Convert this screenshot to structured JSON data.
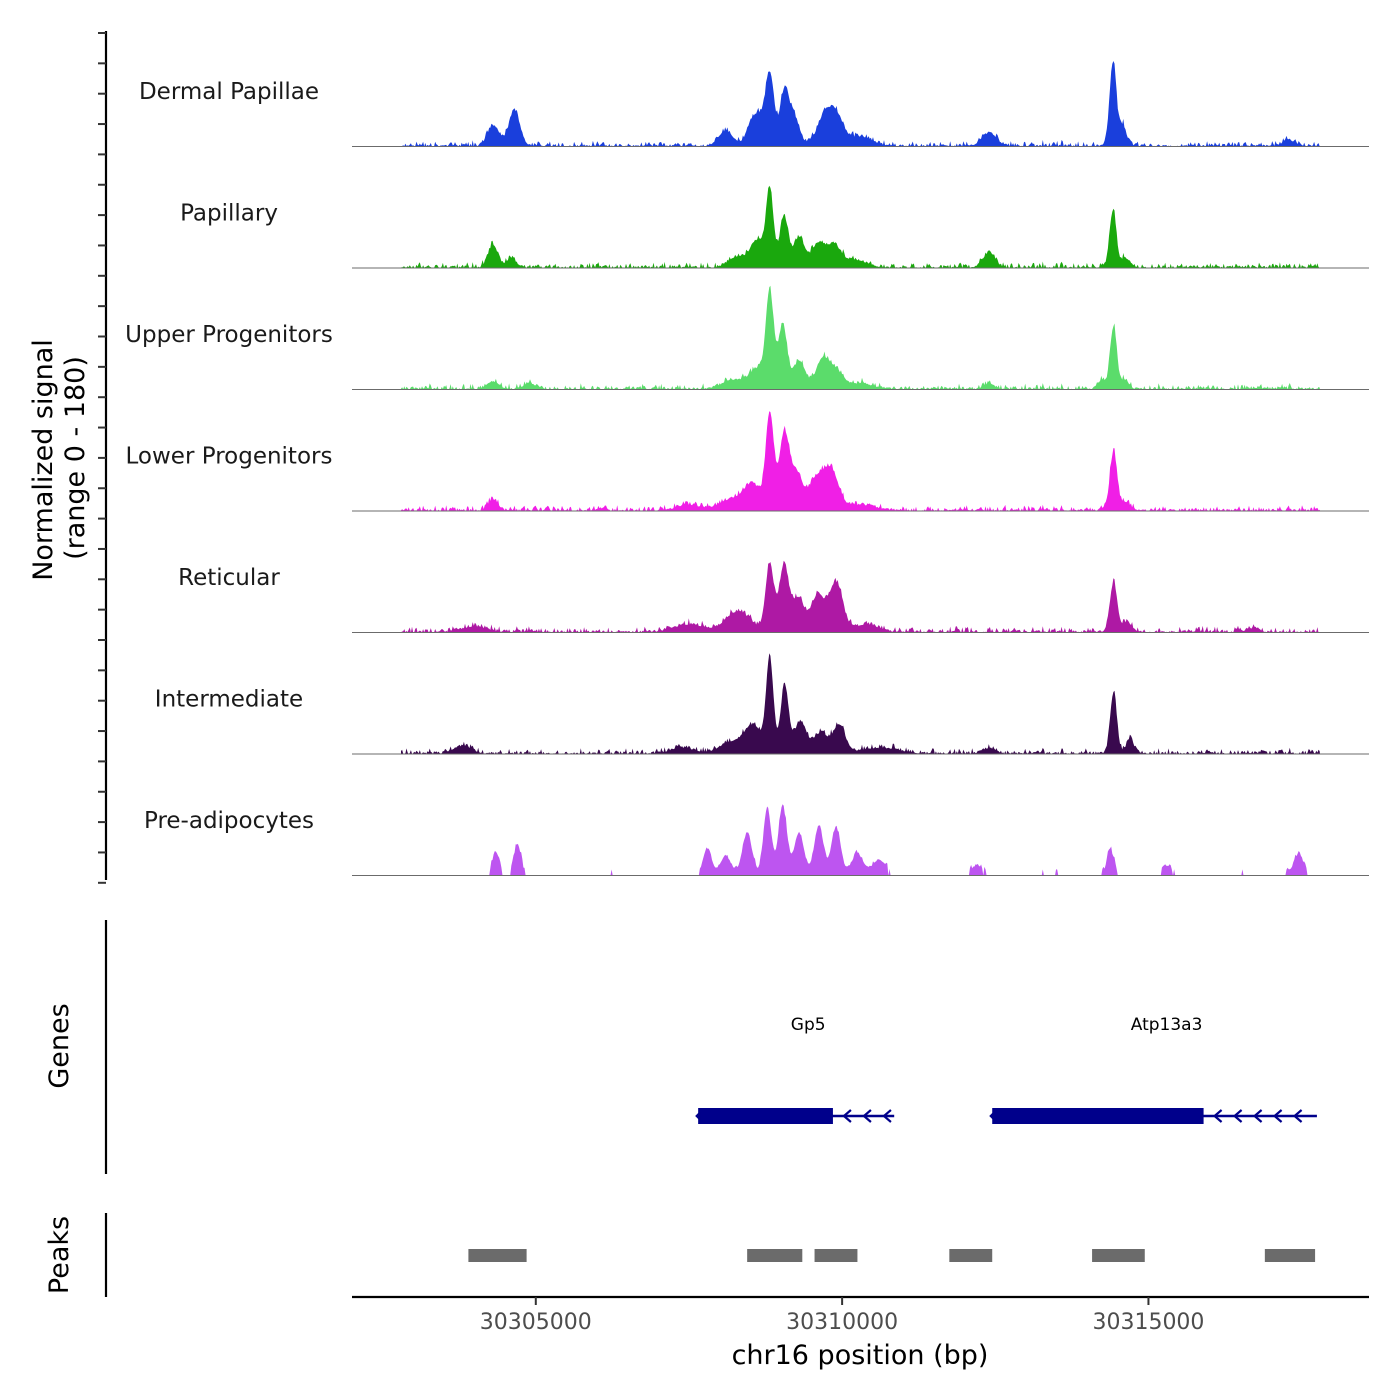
{
  "chart_data": {
    "type": "area",
    "description_free": true,
    "chromosome": "chr16",
    "xlim": [
      30302000,
      30318600
    ],
    "x_ticks": [
      30305000,
      30310000,
      30315000
    ],
    "x_tick_labels": [
      "30305000",
      "30310000",
      "30315000"
    ],
    "xlabel": "chr16 position (bp)",
    "ylabel": "Normalized signal",
    "ylabel_range": "(range 0 - 180)",
    "ylim": [
      0,
      180
    ],
    "tracks": [
      {
        "name": "Dermal Papillae",
        "color": "#1a3fdc",
        "peaks": [
          {
            "pos": 30304300,
            "h": 22,
            "w": 90
          },
          {
            "pos": 30304650,
            "h": 38,
            "w": 90
          },
          {
            "pos": 30308100,
            "h": 16,
            "w": 120
          },
          {
            "pos": 30308600,
            "h": 34,
            "w": 120
          },
          {
            "pos": 30308820,
            "h": 72,
            "w": 70
          },
          {
            "pos": 30309050,
            "h": 50,
            "w": 70
          },
          {
            "pos": 30309200,
            "h": 32,
            "w": 100
          },
          {
            "pos": 30309700,
            "h": 28,
            "w": 120
          },
          {
            "pos": 30309900,
            "h": 30,
            "w": 120
          },
          {
            "pos": 30310300,
            "h": 10,
            "w": 200
          },
          {
            "pos": 30312400,
            "h": 14,
            "w": 120
          },
          {
            "pos": 30314420,
            "h": 88,
            "w": 55
          },
          {
            "pos": 30314580,
            "h": 22,
            "w": 60
          },
          {
            "pos": 30317300,
            "h": 6,
            "w": 100
          }
        ]
      },
      {
        "name": "Papillary",
        "color": "#1aa80d",
        "peaks": [
          {
            "pos": 30304300,
            "h": 24,
            "w": 80
          },
          {
            "pos": 30304600,
            "h": 10,
            "w": 80
          },
          {
            "pos": 30308300,
            "h": 12,
            "w": 150
          },
          {
            "pos": 30308620,
            "h": 28,
            "w": 110
          },
          {
            "pos": 30308820,
            "h": 80,
            "w": 60
          },
          {
            "pos": 30309050,
            "h": 54,
            "w": 70
          },
          {
            "pos": 30309300,
            "h": 32,
            "w": 90
          },
          {
            "pos": 30309600,
            "h": 24,
            "w": 100
          },
          {
            "pos": 30309850,
            "h": 22,
            "w": 120
          },
          {
            "pos": 30310200,
            "h": 8,
            "w": 200
          },
          {
            "pos": 30312400,
            "h": 16,
            "w": 100
          },
          {
            "pos": 30314420,
            "h": 60,
            "w": 55
          },
          {
            "pos": 30314620,
            "h": 10,
            "w": 70
          }
        ]
      },
      {
        "name": "Upper Progenitors",
        "color": "#5bdc6b",
        "peaks": [
          {
            "pos": 30304300,
            "h": 8,
            "w": 100
          },
          {
            "pos": 30304900,
            "h": 6,
            "w": 100
          },
          {
            "pos": 30308250,
            "h": 10,
            "w": 200
          },
          {
            "pos": 30308620,
            "h": 20,
            "w": 120
          },
          {
            "pos": 30308820,
            "h": 100,
            "w": 65
          },
          {
            "pos": 30309030,
            "h": 68,
            "w": 70
          },
          {
            "pos": 30309300,
            "h": 30,
            "w": 100
          },
          {
            "pos": 30309680,
            "h": 30,
            "w": 110
          },
          {
            "pos": 30309900,
            "h": 18,
            "w": 120
          },
          {
            "pos": 30310300,
            "h": 6,
            "w": 200
          },
          {
            "pos": 30312400,
            "h": 6,
            "w": 80
          },
          {
            "pos": 30314240,
            "h": 10,
            "w": 60
          },
          {
            "pos": 30314430,
            "h": 66,
            "w": 55
          },
          {
            "pos": 30314620,
            "h": 10,
            "w": 60
          }
        ]
      },
      {
        "name": "Lower Progenitors",
        "color": "#f01fe6",
        "peaks": [
          {
            "pos": 30304300,
            "h": 12,
            "w": 80
          },
          {
            "pos": 30307500,
            "h": 6,
            "w": 200
          },
          {
            "pos": 30308200,
            "h": 12,
            "w": 200
          },
          {
            "pos": 30308540,
            "h": 26,
            "w": 140
          },
          {
            "pos": 30308820,
            "h": 100,
            "w": 65
          },
          {
            "pos": 30309050,
            "h": 78,
            "w": 80
          },
          {
            "pos": 30309250,
            "h": 40,
            "w": 100
          },
          {
            "pos": 30309550,
            "h": 28,
            "w": 110
          },
          {
            "pos": 30309800,
            "h": 44,
            "w": 130
          },
          {
            "pos": 30310300,
            "h": 6,
            "w": 250
          },
          {
            "pos": 30314430,
            "h": 62,
            "w": 60
          },
          {
            "pos": 30314640,
            "h": 8,
            "w": 80
          }
        ]
      },
      {
        "name": "Reticular",
        "color": "#ae19a4",
        "peaks": [
          {
            "pos": 30304000,
            "h": 6,
            "w": 200
          },
          {
            "pos": 30307500,
            "h": 8,
            "w": 250
          },
          {
            "pos": 30308300,
            "h": 22,
            "w": 200
          },
          {
            "pos": 30308820,
            "h": 70,
            "w": 70
          },
          {
            "pos": 30309050,
            "h": 70,
            "w": 75
          },
          {
            "pos": 30309280,
            "h": 36,
            "w": 100
          },
          {
            "pos": 30309600,
            "h": 38,
            "w": 110
          },
          {
            "pos": 30309900,
            "h": 52,
            "w": 110
          },
          {
            "pos": 30310400,
            "h": 8,
            "w": 200
          },
          {
            "pos": 30314430,
            "h": 52,
            "w": 60
          },
          {
            "pos": 30314650,
            "h": 10,
            "w": 80
          },
          {
            "pos": 30316700,
            "h": 4,
            "w": 100
          }
        ]
      },
      {
        "name": "Intermediate",
        "color": "#39094e",
        "peaks": [
          {
            "pos": 30303800,
            "h": 8,
            "w": 150
          },
          {
            "pos": 30307400,
            "h": 6,
            "w": 200
          },
          {
            "pos": 30308200,
            "h": 12,
            "w": 200
          },
          {
            "pos": 30308550,
            "h": 28,
            "w": 140
          },
          {
            "pos": 30308820,
            "h": 98,
            "w": 60
          },
          {
            "pos": 30309060,
            "h": 72,
            "w": 65
          },
          {
            "pos": 30309320,
            "h": 34,
            "w": 100
          },
          {
            "pos": 30309650,
            "h": 22,
            "w": 110
          },
          {
            "pos": 30309950,
            "h": 30,
            "w": 100
          },
          {
            "pos": 30310600,
            "h": 6,
            "w": 300
          },
          {
            "pos": 30312400,
            "h": 6,
            "w": 100
          },
          {
            "pos": 30314430,
            "h": 64,
            "w": 55
          },
          {
            "pos": 30314700,
            "h": 16,
            "w": 60
          }
        ]
      },
      {
        "name": "Pre-adipocytes",
        "color": "#bd55f0",
        "peaks": [
          {
            "pos": 30304350,
            "h": 24,
            "w": 60
          },
          {
            "pos": 30304700,
            "h": 32,
            "w": 60
          },
          {
            "pos": 30307800,
            "h": 28,
            "w": 70
          },
          {
            "pos": 30308100,
            "h": 20,
            "w": 90
          },
          {
            "pos": 30308450,
            "h": 44,
            "w": 80
          },
          {
            "pos": 30308780,
            "h": 70,
            "w": 65
          },
          {
            "pos": 30309030,
            "h": 72,
            "w": 70
          },
          {
            "pos": 30309300,
            "h": 44,
            "w": 80
          },
          {
            "pos": 30309620,
            "h": 52,
            "w": 75
          },
          {
            "pos": 30309900,
            "h": 50,
            "w": 75
          },
          {
            "pos": 30310250,
            "h": 22,
            "w": 100
          },
          {
            "pos": 30310600,
            "h": 16,
            "w": 100
          },
          {
            "pos": 30312200,
            "h": 10,
            "w": 100
          },
          {
            "pos": 30314380,
            "h": 26,
            "w": 60
          },
          {
            "pos": 30315300,
            "h": 10,
            "w": 80
          },
          {
            "pos": 30317450,
            "h": 22,
            "w": 80
          }
        ]
      }
    ],
    "genes_label": "Genes",
    "genes": [
      {
        "name": "Gp5",
        "start": 30307650,
        "end": 30310850,
        "cds_start": 30307650,
        "cds_end": 30309850,
        "strand": "-"
      },
      {
        "name": "Atp13a3",
        "start": 30312450,
        "end": 30317750,
        "cds_start": 30312450,
        "cds_end": 30315900,
        "strand": "-"
      }
    ],
    "peaks_label": "Peaks",
    "peak_regions": [
      [
        30303900,
        30304850
      ],
      [
        30308450,
        30309350
      ],
      [
        30309550,
        30310250
      ],
      [
        30311750,
        30312450
      ],
      [
        30314080,
        30314940
      ],
      [
        30316900,
        30317720
      ]
    ]
  }
}
